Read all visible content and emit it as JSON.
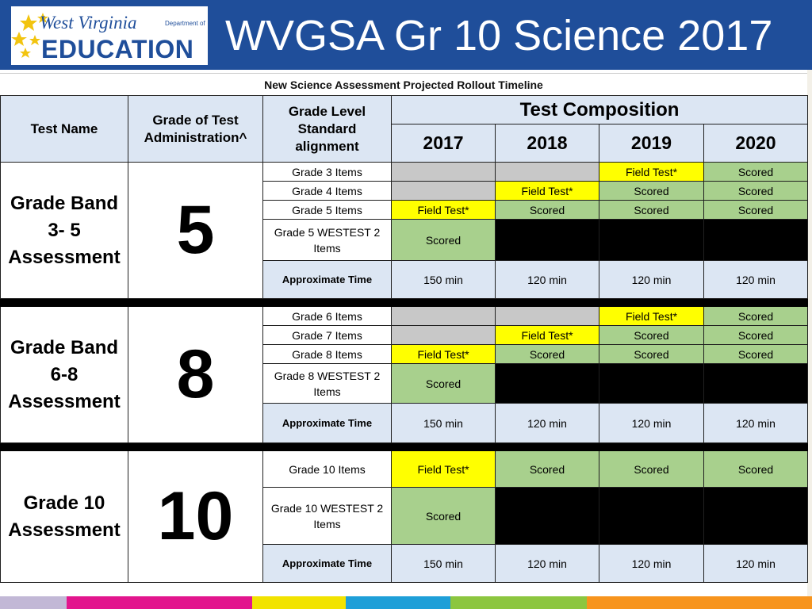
{
  "header": {
    "logo_top": "West Virginia",
    "logo_dept": "Department of",
    "logo_main": "EDUCATION",
    "title": "WVGSA Gr 10 Science 2017"
  },
  "subtitle": "New Science Assessment Projected Rollout Timeline",
  "table": {
    "col_test_name": "Test Name",
    "col_grade_admin": "Grade of Test Administration^",
    "col_alignment": "Grade Level Standard alignment",
    "col_composition": "Test Composition",
    "years": [
      "2017",
      "2018",
      "2019",
      "2020"
    ],
    "bands": [
      {
        "name": "Grade Band 3- 5 Assessment",
        "grade": "5",
        "rows": [
          {
            "label": "Grade 3 Items",
            "cells": [
              "",
              "",
              "Field Test*",
              "Scored"
            ],
            "status": [
              "gray",
              "gray",
              "yellow",
              "green"
            ]
          },
          {
            "label": "Grade 4 Items",
            "cells": [
              "",
              "Field Test*",
              "Scored",
              "Scored"
            ],
            "status": [
              "gray",
              "yellow",
              "green",
              "green"
            ]
          },
          {
            "label": "Grade 5 Items",
            "cells": [
              "Field Test*",
              "Scored",
              "Scored",
              "Scored"
            ],
            "status": [
              "yellow",
              "green",
              "green",
              "green"
            ]
          },
          {
            "label": "Grade 5 WESTEST 2 Items",
            "cells": [
              "Scored",
              "",
              "",
              ""
            ],
            "status": [
              "green",
              "black",
              "black",
              "black"
            ]
          }
        ],
        "time_label": "Approximate Time",
        "times": [
          "150 min",
          "120 min",
          "120 min",
          "120 min"
        ]
      },
      {
        "name": "Grade Band 6-8 Assessment",
        "grade": "8",
        "rows": [
          {
            "label": "Grade 6 Items",
            "cells": [
              "",
              "",
              "Field Test*",
              "Scored"
            ],
            "status": [
              "gray",
              "gray",
              "yellow",
              "green"
            ]
          },
          {
            "label": "Grade 7 Items",
            "cells": [
              "",
              "Field Test*",
              "Scored",
              "Scored"
            ],
            "status": [
              "gray",
              "yellow",
              "green",
              "green"
            ]
          },
          {
            "label": "Grade 8 Items",
            "cells": [
              "Field Test*",
              "Scored",
              "Scored",
              "Scored"
            ],
            "status": [
              "yellow",
              "green",
              "green",
              "green"
            ]
          },
          {
            "label": "Grade 8 WESTEST 2 Items",
            "cells": [
              "Scored",
              "",
              "",
              ""
            ],
            "status": [
              "green",
              "black",
              "black",
              "black"
            ]
          }
        ],
        "time_label": "Approximate Time",
        "times": [
          "150 min",
          "120 min",
          "120 min",
          "120 min"
        ]
      },
      {
        "name": "Grade 10 Assessment",
        "grade": "10",
        "rows": [
          {
            "label": "Grade 10 Items",
            "cells": [
              "Field Test*",
              "Scored",
              "Scored",
              "Scored"
            ],
            "status": [
              "yellow",
              "green",
              "green",
              "green"
            ]
          },
          {
            "label": "Grade 10 WESTEST 2 Items",
            "cells": [
              "Scored",
              "",
              "",
              ""
            ],
            "status": [
              "green",
              "black",
              "black",
              "black"
            ]
          }
        ],
        "time_label": "Approximate Time",
        "times": [
          "150 min",
          "120 min",
          "120 min",
          "120 min"
        ]
      }
    ]
  },
  "colors": {
    "header_blue": "#1f4e9a",
    "field_test": "#ffff00",
    "scored": "#a8d08d",
    "not_tested": "#c8c8c8",
    "retired": "#000000",
    "header_cell": "#dce6f3"
  }
}
